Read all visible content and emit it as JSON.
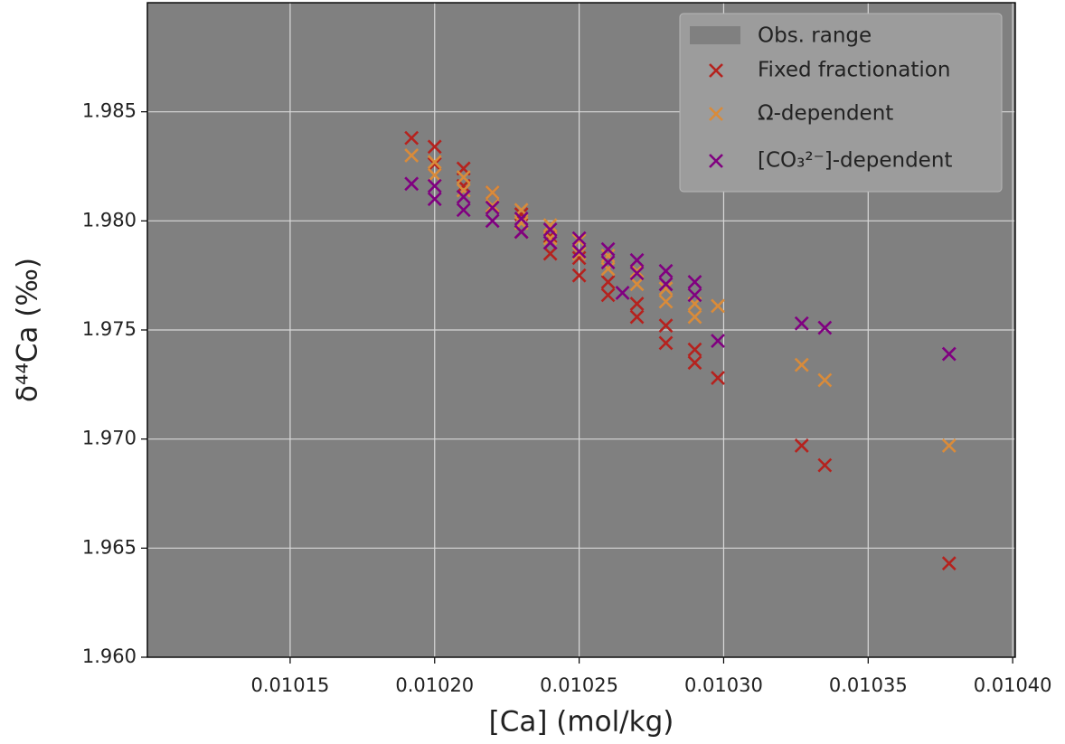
{
  "chart_data": {
    "type": "scatter",
    "xlabel": "[Ca] (mol/kg)",
    "ylabel": "δ⁴⁴Ca (‰)",
    "xlim": [
      0.0101006,
      0.0104009
    ],
    "ylim": [
      1.96,
      1.99
    ],
    "xticks": [
      0.01015,
      {
        "value": 0.0102,
        "label": "0.01020"
      },
      0.01025,
      {
        "value": 0.0103,
        "label": "0.01030"
      },
      0.01035,
      {
        "value": 0.0104,
        "label": "0.01040"
      }
    ],
    "yticks": [
      {
        "value": 1.96,
        "label": "1.960"
      },
      {
        "value": 1.965,
        "label": "1.965"
      },
      {
        "value": 1.97,
        "label": "1.970"
      },
      {
        "value": 1.975,
        "label": "1.975"
      },
      {
        "value": 1.98,
        "label": "1.980"
      },
      {
        "value": 1.985,
        "label": "1.985"
      }
    ],
    "grid": true,
    "legend": "upper right",
    "obs_range": {
      "name": "Obs. range",
      "color": "#808080"
    },
    "series": [
      {
        "name": "Fixed fractionation",
        "color": "#b5221e",
        "x": [
          0.010192,
          0.0102,
          0.0102,
          0.01021,
          0.01021,
          0.01022,
          0.01022,
          0.01023,
          0.01023,
          0.01024,
          0.01024,
          0.01025,
          0.01025,
          0.01026,
          0.01026,
          0.01027,
          0.01027,
          0.01028,
          0.01028,
          0.01029,
          0.01029,
          0.010298,
          0.010327,
          0.010335,
          0.010378
        ],
        "values": [
          1.9838,
          1.9834,
          1.9826,
          1.9824,
          1.9816,
          1.9813,
          1.9807,
          1.9803,
          1.9795,
          1.9793,
          1.9785,
          1.9783,
          1.9775,
          1.9772,
          1.9766,
          1.9762,
          1.9756,
          1.9752,
          1.9744,
          1.9741,
          1.9735,
          1.9728,
          1.9697,
          1.9688,
          1.9643
        ]
      },
      {
        "name": "Ω-dependent",
        "color": "#d98b3a",
        "x": [
          0.010192,
          0.0102,
          0.0102,
          0.01021,
          0.01021,
          0.01022,
          0.01022,
          0.01023,
          0.01023,
          0.01024,
          0.01024,
          0.01025,
          0.01025,
          0.01026,
          0.01026,
          0.01027,
          0.01027,
          0.01028,
          0.01028,
          0.01029,
          0.01029,
          0.010298,
          0.010327,
          0.010335,
          0.010378
        ],
        "values": [
          1.983,
          1.9827,
          1.9821,
          1.982,
          1.9814,
          1.9813,
          1.9807,
          1.9805,
          1.9799,
          1.9798,
          1.9792,
          1.9791,
          1.9785,
          1.9784,
          1.9778,
          1.9777,
          1.9771,
          1.9769,
          1.9763,
          1.9762,
          1.9756,
          1.9761,
          1.9734,
          1.9727,
          1.9697
        ]
      },
      {
        "name": "[CO₃²⁻]-dependent",
        "color": "#800080",
        "x": [
          0.010192,
          0.0102,
          0.0102,
          0.01021,
          0.01021,
          0.01022,
          0.01022,
          0.01023,
          0.01023,
          0.01024,
          0.01024,
          0.01025,
          0.01025,
          0.01026,
          0.01026,
          0.01027,
          0.01027,
          0.01028,
          0.01028,
          0.01029,
          0.01029,
          0.010265,
          0.010298,
          0.010327,
          0.010335,
          0.010378
        ],
        "values": [
          1.9817,
          1.9816,
          1.981,
          1.9811,
          1.9805,
          1.9806,
          1.98,
          1.9801,
          1.9795,
          1.9796,
          1.979,
          1.9792,
          1.9786,
          1.9787,
          1.9781,
          1.9782,
          1.9776,
          1.9777,
          1.9771,
          1.9772,
          1.9766,
          1.9767,
          1.9745,
          1.9753,
          1.9751,
          1.9739
        ]
      }
    ]
  }
}
